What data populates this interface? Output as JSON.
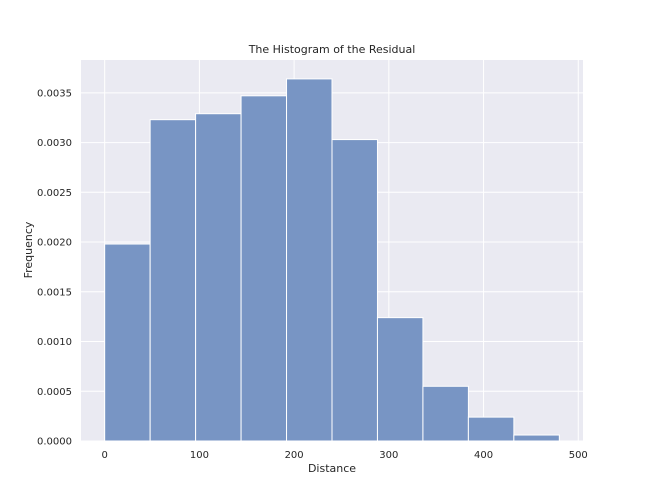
{
  "chart_data": {
    "type": "bar",
    "title": "The Histogram of the Residual",
    "xlabel": "Distance",
    "ylabel": "Frequency",
    "xlim": [
      -25,
      505
    ],
    "ylim": [
      0,
      0.00383
    ],
    "grid": true,
    "bin_edges": [
      0,
      48,
      96,
      144,
      192,
      240,
      288,
      336,
      384,
      432,
      480
    ],
    "values": [
      0.00198,
      0.00323,
      0.00329,
      0.00347,
      0.00364,
      0.00303,
      0.00124,
      0.00055,
      0.00024,
      6e-05
    ],
    "x_ticks": [
      0,
      100,
      200,
      300,
      400,
      500
    ],
    "x_tick_labels": [
      "0",
      "100",
      "200",
      "300",
      "400",
      "500"
    ],
    "y_ticks": [
      0,
      0.0005,
      0.001,
      0.0015,
      0.002,
      0.0025,
      0.003,
      0.0035
    ],
    "y_tick_labels": [
      "0.0000",
      "0.0005",
      "0.0010",
      "0.0015",
      "0.0020",
      "0.0025",
      "0.0030",
      "0.0035"
    ],
    "colors": {
      "background": "#eaeaf2",
      "bar": "#7895c4",
      "grid": "#ffffff"
    }
  }
}
